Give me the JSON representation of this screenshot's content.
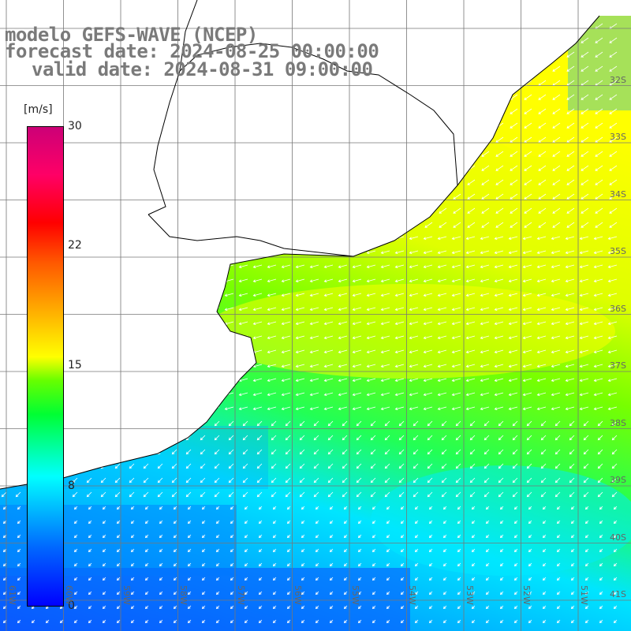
{
  "header": {
    "title": "modelo GEFS-WAVE (NCEP)",
    "forecast": "forecast date: 2024-08-25 00:00:00",
    "valid": "valid date: 2024-08-31 09:00:00"
  },
  "colorbar": {
    "unit": "[m/s]",
    "ticks": [
      "30",
      "22",
      "15",
      "8",
      "0"
    ]
  },
  "axes": {
    "lat_labels": [
      "32S",
      "33S",
      "34S",
      "35S",
      "36S",
      "37S",
      "38S",
      "39S",
      "40S",
      "41S"
    ],
    "lon_labels": [
      "61W",
      "60W",
      "59W",
      "58W",
      "57W",
      "56W",
      "55W",
      "54W",
      "53W",
      "52W",
      "51W"
    ]
  },
  "map_colors": {
    "land": "#ffffff",
    "coast": "#000000",
    "grid": "#777777",
    "arrows": "#ffffff"
  }
}
